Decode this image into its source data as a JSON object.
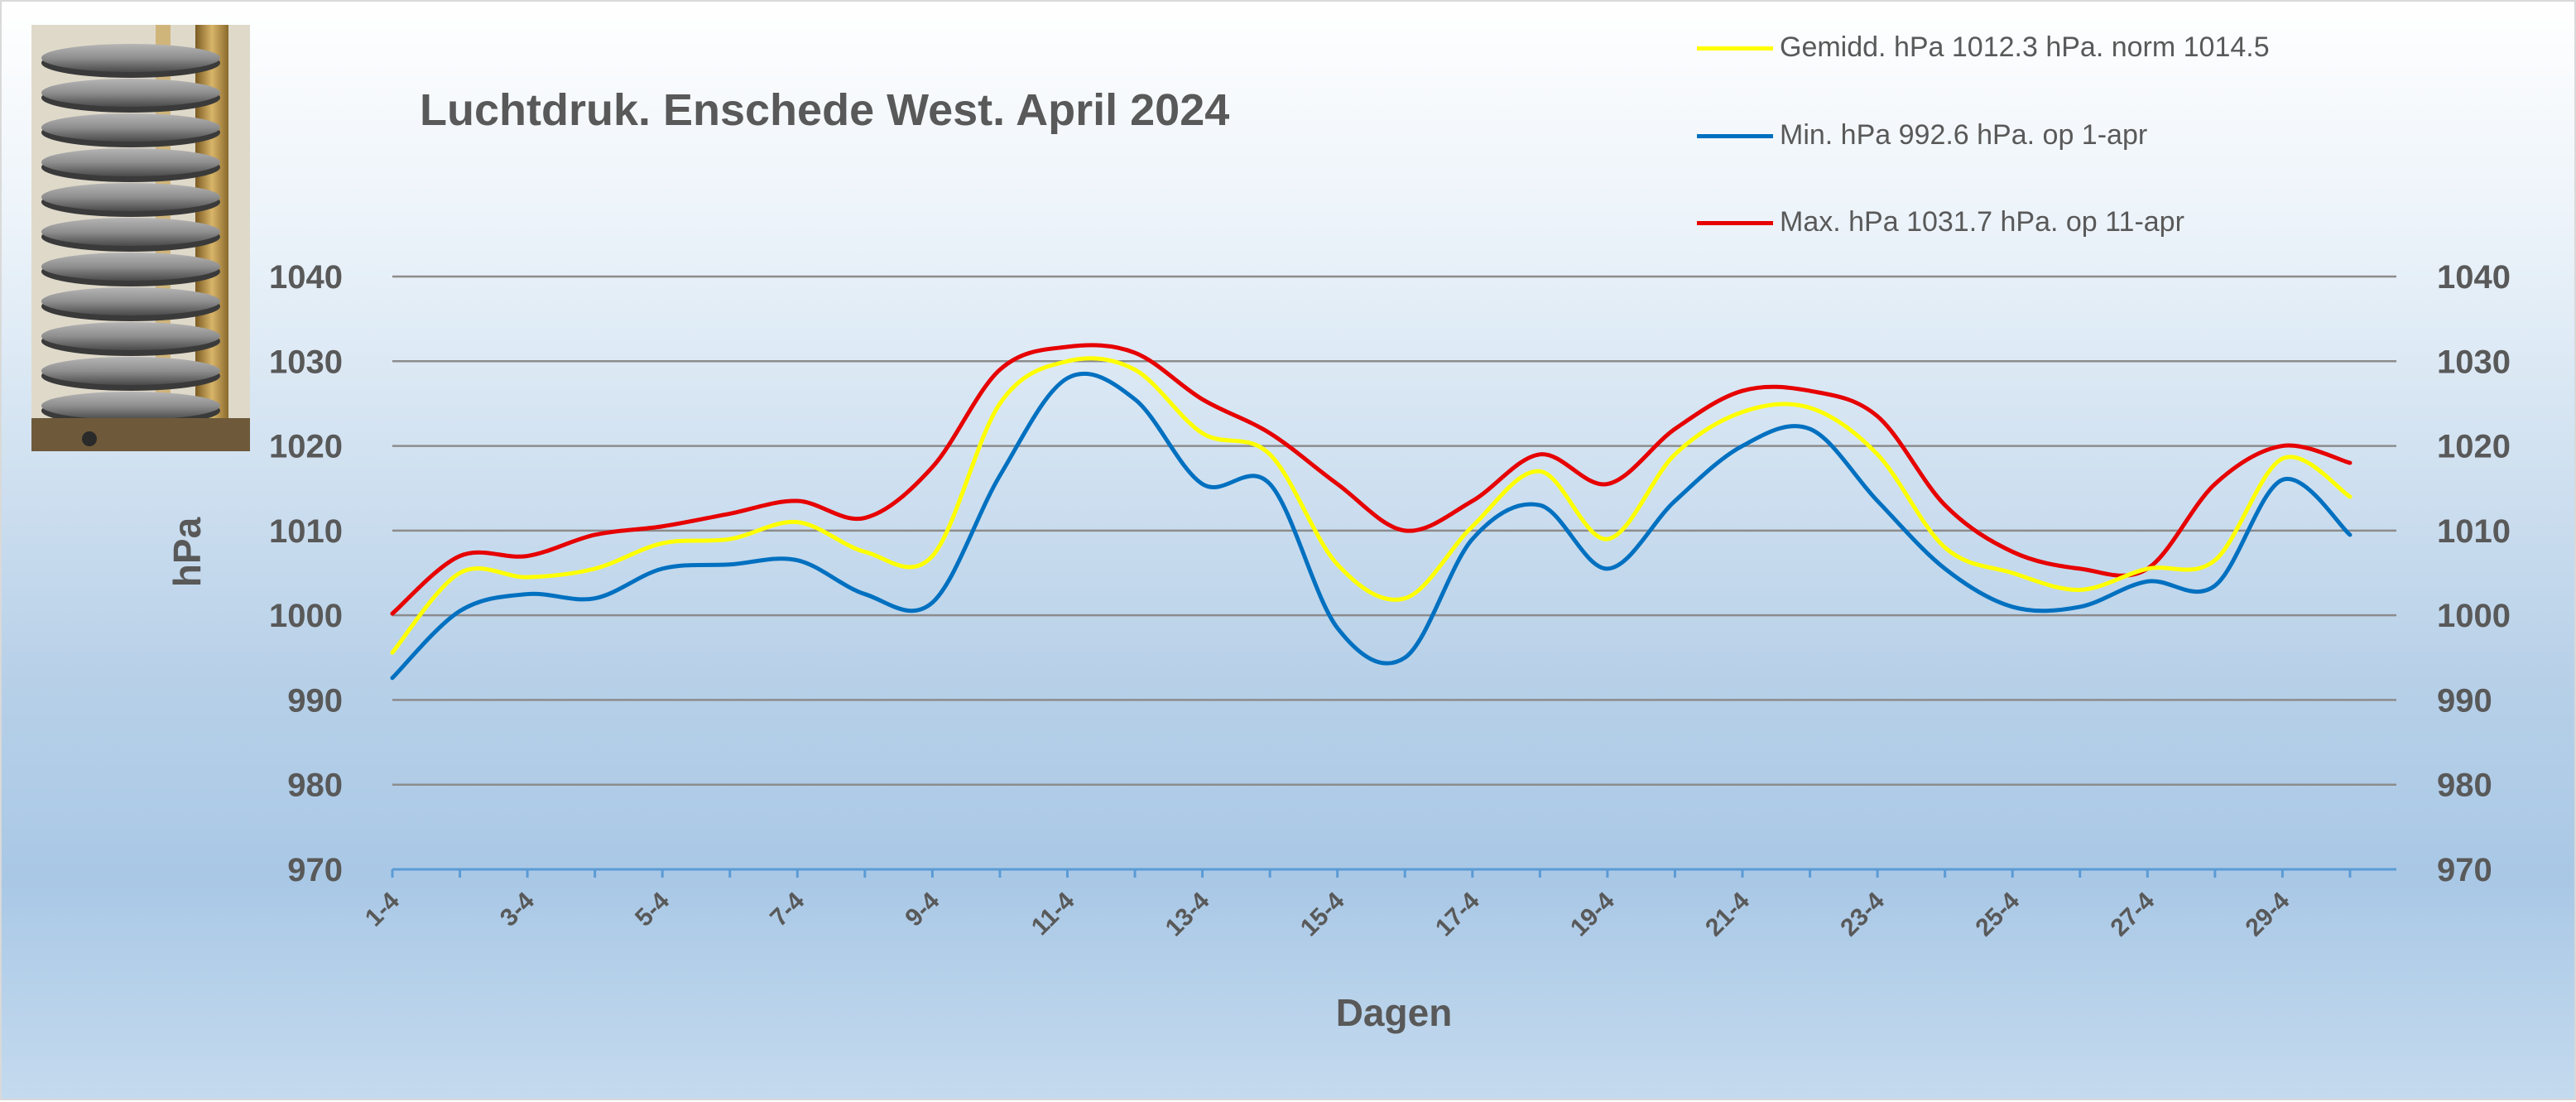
{
  "title": "Luchtdruk. Enschede West. April 2024",
  "legend": [
    {
      "label": "Gemidd. hPa 1012.3 hPa.  norm 1014.5",
      "color": "#ffff00"
    },
    {
      "label": "Min. hPa 992.6 hPa. op 1-apr",
      "color": "#0070c0"
    },
    {
      "label": "Max. hPa 1031.7 hPa.  op 11-apr",
      "color": "#e60000"
    }
  ],
  "chart_data": {
    "type": "line",
    "title": "Luchtdruk. Enschede West. April 2024",
    "xlabel": "Dagen",
    "ylabel": "hPa",
    "ylim": [
      970,
      1040
    ],
    "yticks": [
      970,
      980,
      990,
      1000,
      1010,
      1020,
      1030,
      1040
    ],
    "y_axis_both_sides": true,
    "grid": true,
    "legend_position": "top-right",
    "categories": [
      "1-4",
      "2-4",
      "3-4",
      "4-4",
      "5-4",
      "6-4",
      "7-4",
      "8-4",
      "9-4",
      "10-4",
      "11-4",
      "12-4",
      "13-4",
      "14-4",
      "15-4",
      "16-4",
      "17-4",
      "18-4",
      "19-4",
      "20-4",
      "21-4",
      "22-4",
      "23-4",
      "24-4",
      "25-4",
      "26-4",
      "27-4",
      "28-4",
      "29-4",
      "30-4"
    ],
    "tick_labels": [
      "1-4",
      "3-4",
      "5-4",
      "7-4",
      "9-4",
      "11-4",
      "13-4",
      "15-4",
      "17-4",
      "19-4",
      "21-4",
      "23-4",
      "25-4",
      "27-4",
      "29-4"
    ],
    "series": [
      {
        "name": "Gemidd. hPa 1012.3 hPa.  norm 1014.5",
        "color": "#ffff00",
        "values": [
          995.6,
          1005.0,
          1004.5,
          1005.5,
          1008.5,
          1009.0,
          1011.0,
          1007.5,
          1007.0,
          1025.0,
          1030.0,
          1029.0,
          1021.5,
          1019.0,
          1006.0,
          1002.0,
          1010.5,
          1017.0,
          1009.0,
          1019.0,
          1024.0,
          1024.5,
          1019.0,
          1008.0,
          1005.0,
          1003.0,
          1005.5,
          1006.5,
          1018.5,
          1014.0
        ]
      },
      {
        "name": "Min. hPa 992.6 hPa. op 1-apr",
        "color": "#0070c0",
        "values": [
          992.6,
          1000.5,
          1002.5,
          1002.0,
          1005.5,
          1006.0,
          1006.5,
          1002.5,
          1001.5,
          1016.5,
          1028.0,
          1025.5,
          1015.5,
          1015.5,
          998.5,
          995.0,
          1009.0,
          1013.0,
          1005.5,
          1013.5,
          1020.0,
          1022.0,
          1013.5,
          1005.5,
          1001.0,
          1001.0,
          1004.0,
          1003.5,
          1016.0,
          1009.5
        ]
      },
      {
        "name": "Max. hPa 1031.7 hPa.  op 11-apr",
        "color": "#e60000",
        "values": [
          1000.2,
          1007.0,
          1007.0,
          1009.5,
          1010.5,
          1012.0,
          1013.5,
          1011.5,
          1017.5,
          1029.0,
          1031.7,
          1031.0,
          1025.5,
          1021.5,
          1015.5,
          1010.0,
          1013.5,
          1019.0,
          1015.5,
          1022.0,
          1026.5,
          1026.5,
          1023.5,
          1013.0,
          1007.5,
          1005.5,
          1005.5,
          1015.5,
          1020.0,
          1018.0
        ]
      }
    ]
  }
}
